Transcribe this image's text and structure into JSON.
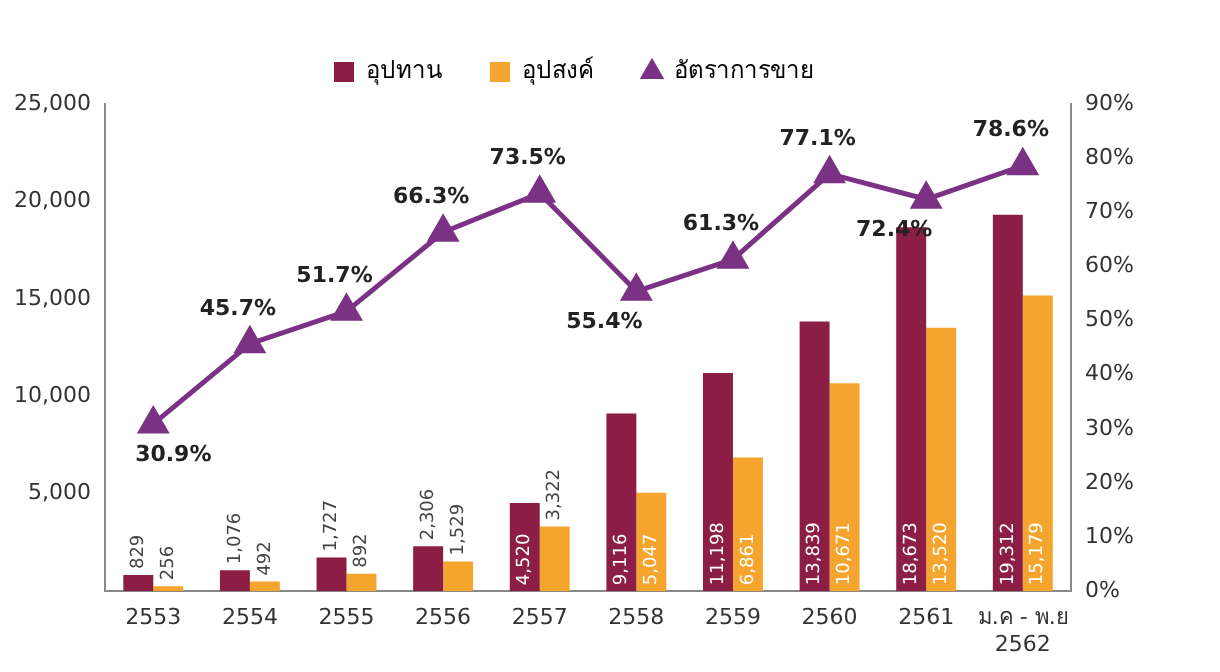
{
  "chart_data": {
    "type": "bar",
    "categories": [
      "2553",
      "2554",
      "2555",
      "2556",
      "2557",
      "2558",
      "2559",
      "2560",
      "2561",
      "ม.ค - พ.ย 2562"
    ],
    "series": [
      {
        "name": "อุปทาน",
        "color": "#8c1d44",
        "values": [
          829,
          1076,
          1727,
          2306,
          4520,
          9116,
          11198,
          13839,
          18673,
          19312
        ],
        "value_labels": [
          "829",
          "1,076",
          "1,727",
          "2,306",
          "4,520",
          "9,116",
          "11,198",
          "13,839",
          "18,673",
          "19,312"
        ]
      },
      {
        "name": "อุปสงค์",
        "color": "#f5a52e",
        "values": [
          256,
          492,
          892,
          1529,
          3322,
          5047,
          6861,
          10671,
          13520,
          15179
        ],
        "value_labels": [
          "256",
          "492",
          "892",
          "1,529",
          "3,322",
          "5,047",
          "6,861",
          "10,671",
          "13,520",
          "15,179"
        ]
      },
      {
        "name": "อัตราการขาย",
        "type": "line",
        "axis": "y2",
        "color": "#7b3285",
        "marker": "triangle",
        "values": [
          30.9,
          45.7,
          51.7,
          66.3,
          73.5,
          55.4,
          61.3,
          77.1,
          72.4,
          78.6
        ],
        "value_labels": [
          "30.9%",
          "45.7%",
          "51.7%",
          "66.3%",
          "73.5%",
          "55.4%",
          "61.3%",
          "77.1%",
          "72.4%",
          "78.6%"
        ]
      }
    ],
    "ylim": [
      0,
      25000
    ],
    "yticks": [
      {
        "value": 0,
        "label": null
      },
      {
        "value": 5000,
        "label": "5,000"
      },
      {
        "value": 10000,
        "label": "10,000"
      },
      {
        "value": 15000,
        "label": "15,000"
      },
      {
        "value": 20000,
        "label": "20,000"
      },
      {
        "value": 25000,
        "label": "25,000"
      }
    ],
    "y2lim": [
      0,
      90
    ],
    "y2ticks": [
      {
        "value": 0,
        "label": "0%"
      },
      {
        "value": 10,
        "label": "10%"
      },
      {
        "value": 20,
        "label": "20%"
      },
      {
        "value": 30,
        "label": "30%"
      },
      {
        "value": 40,
        "label": "40%"
      },
      {
        "value": 50,
        "label": "50%"
      },
      {
        "value": 60,
        "label": "60%"
      },
      {
        "value": 70,
        "label": "70%"
      },
      {
        "value": 80,
        "label": "80%"
      },
      {
        "value": 90,
        "label": "90%"
      }
    ],
    "grid": false,
    "legend": "top"
  }
}
